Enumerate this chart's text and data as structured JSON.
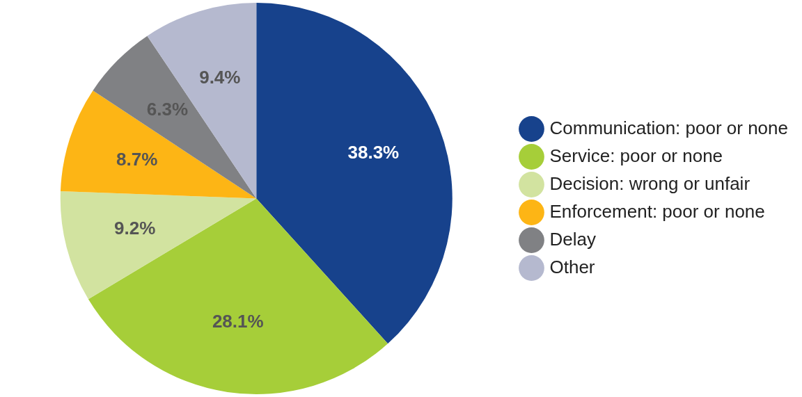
{
  "chart_data": {
    "type": "pie",
    "categories": [
      "Communication: poor or none",
      "Service: poor or none",
      "Decision: wrong or unfair",
      "Enforcement: poor or none",
      "Delay",
      "Other"
    ],
    "values": [
      38.3,
      28.1,
      9.2,
      8.7,
      6.3,
      9.4
    ],
    "value_labels": [
      "38.3%",
      "28.1%",
      "9.2%",
      "8.7%",
      "6.3%",
      "9.4%"
    ],
    "colors": [
      "#17428c",
      "#a6ce39",
      "#d2e3a0",
      "#fdb515",
      "#808184",
      "#b5b9cf"
    ],
    "legend": "right"
  }
}
